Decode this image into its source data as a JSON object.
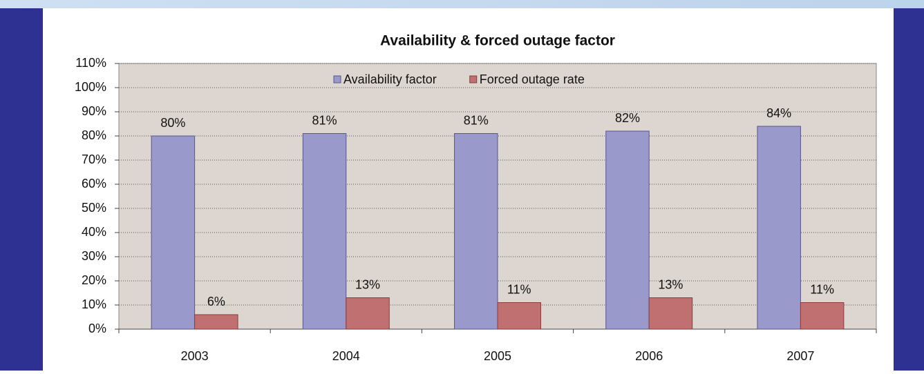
{
  "chart_data": {
    "type": "bar",
    "title": "Availability & forced outage factor",
    "categories": [
      "2003",
      "2004",
      "2005",
      "2006",
      "2007"
    ],
    "series": [
      {
        "name": "Availability factor",
        "color": "#9999cc",
        "values": [
          80,
          81,
          81,
          82,
          84
        ],
        "value_labels": [
          "80%",
          "81%",
          "81%",
          "82%",
          "84%"
        ]
      },
      {
        "name": "Forced outage rate",
        "color": "#c07070",
        "values": [
          6,
          13,
          11,
          13,
          11
        ],
        "value_labels": [
          "6%",
          "13%",
          "11%",
          "13%",
          "11%"
        ]
      }
    ],
    "ylim": [
      0,
      110
    ],
    "yticks": [
      {
        "value": 0,
        "label": "0%"
      },
      {
        "value": 10,
        "label": "10%"
      },
      {
        "value": 20,
        "label": "20%"
      },
      {
        "value": 30,
        "label": "30%"
      },
      {
        "value": 40,
        "label": "40%"
      },
      {
        "value": 50,
        "label": "50%"
      },
      {
        "value": 60,
        "label": "60%"
      },
      {
        "value": 70,
        "label": "70%"
      },
      {
        "value": 80,
        "label": "80%"
      },
      {
        "value": 90,
        "label": "90%"
      },
      {
        "value": 100,
        "label": "100%"
      },
      {
        "value": 110,
        "label": "110%"
      }
    ],
    "grid": true,
    "legend": "top"
  }
}
